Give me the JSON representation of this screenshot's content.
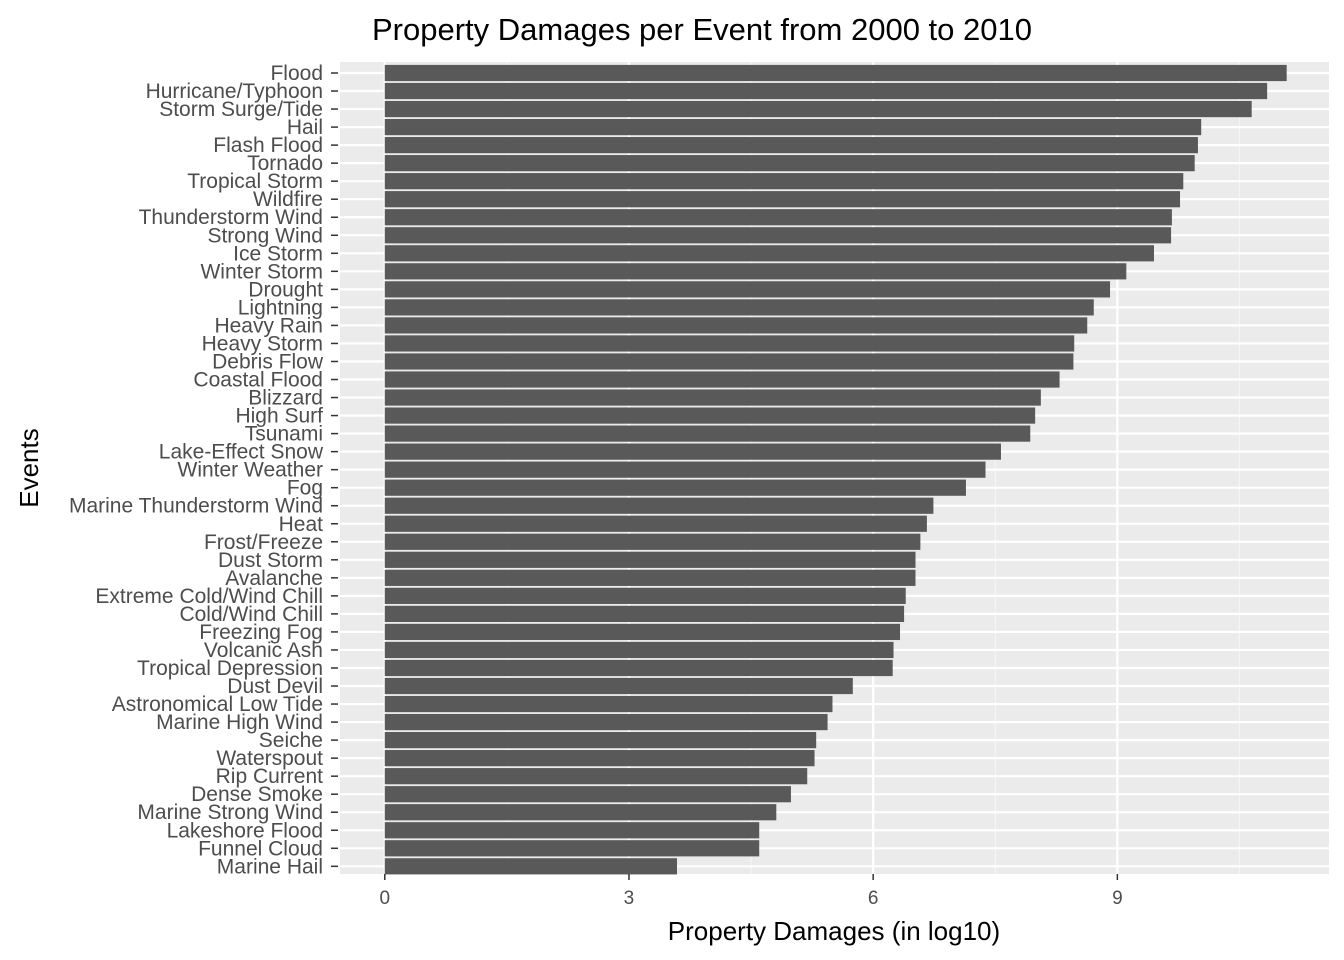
{
  "chart_data": {
    "type": "bar",
    "orientation": "horizontal",
    "title": "Property Damages per Event from 2000 to 2010",
    "xlabel": "Property Damages (in log10)",
    "ylabel": "Events",
    "xlim": [
      -0.55,
      11.6
    ],
    "xticks": [
      0,
      3,
      6,
      9
    ],
    "grid": true,
    "colors": {
      "bar": "#595959",
      "panel": "#ebebeb",
      "grid_major": "#ffffff",
      "grid_minor": "#f5f5f5"
    },
    "categories": [
      "Flood",
      "Hurricane/Typhoon",
      "Storm Surge/Tide",
      "Hail",
      "Flash Flood",
      "Tornado",
      "Tropical Storm",
      "Wildfire",
      "Thunderstorm Wind",
      "Strong Wind",
      "Ice Storm",
      "Winter Storm",
      "Drought",
      "Lightning",
      "Heavy Rain",
      "Heavy Storm",
      "Debris Flow",
      "Coastal Flood",
      "Blizzard",
      "High Surf",
      "Tsunami",
      "Lake-Effect Snow",
      "Winter Weather",
      "Fog",
      "Marine Thunderstorm Wind",
      "Heat",
      "Frost/Freeze",
      "Dust Storm",
      "Avalanche",
      "Extreme Cold/Wind Chill",
      "Cold/Wind Chill",
      "Freezing Fog",
      "Volcanic Ash",
      "Tropical Depression",
      "Dust Devil",
      "Astronomical Low Tide",
      "Marine High Wind",
      "Seiche",
      "Waterspout",
      "Rip Current",
      "Dense Smoke",
      "Marine Strong Wind",
      "Lakeshore Flood",
      "Funnel Cloud",
      "Marine Hail"
    ],
    "values": [
      11.08,
      10.84,
      10.65,
      10.03,
      9.99,
      9.95,
      9.81,
      9.77,
      9.67,
      9.66,
      9.45,
      9.11,
      8.91,
      8.71,
      8.63,
      8.47,
      8.46,
      8.29,
      8.06,
      7.99,
      7.93,
      7.57,
      7.38,
      7.14,
      6.74,
      6.66,
      6.58,
      6.52,
      6.52,
      6.4,
      6.38,
      6.33,
      6.25,
      6.24,
      5.75,
      5.5,
      5.44,
      5.3,
      5.28,
      5.19,
      4.99,
      4.81,
      4.6,
      4.6,
      3.59
    ]
  }
}
